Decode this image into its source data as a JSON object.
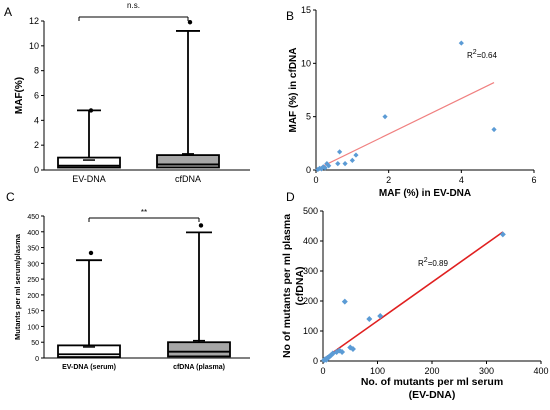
{
  "chart_data": [
    {
      "panel": "A",
      "type": "box",
      "ylabel": "MAF(%)",
      "ylim": [
        0,
        12
      ],
      "yticks": [
        0,
        2,
        4,
        6,
        8,
        10,
        12
      ],
      "categories": [
        "EV-DNA",
        "cfDNA"
      ],
      "colors": [
        "#ffffff",
        "#a6a6a6"
      ],
      "boxes": [
        {
          "min": 0,
          "q1": 0.2,
          "median": 0.35,
          "q3": 1.0,
          "whisker_high": 4.8,
          "outliers": [
            4.8
          ],
          "mean": 0.8
        },
        {
          "min": 0,
          "q1": 0.2,
          "median": 0.45,
          "q3": 1.2,
          "whisker_high": 11.2,
          "outliers": [
            11.9
          ],
          "mean": 1.3
        }
      ],
      "significance": "n.s."
    },
    {
      "panel": "B",
      "type": "scatter",
      "xlabel": "MAF (%) in EV-DNA",
      "ylabel": "MAF (%) in cfDNA",
      "xlim": [
        0,
        6
      ],
      "ylim": [
        0,
        15
      ],
      "xticks": [
        0,
        2,
        4,
        6
      ],
      "yticks": [
        0,
        5,
        10,
        15
      ],
      "point_color": "#5b9bd5",
      "line_color": "#f08080",
      "points": [
        {
          "x": 0.05,
          "y": 0.05
        },
        {
          "x": 0.1,
          "y": 0.15
        },
        {
          "x": 0.15,
          "y": 0.1
        },
        {
          "x": 0.2,
          "y": 0.3
        },
        {
          "x": 0.25,
          "y": 0.2
        },
        {
          "x": 0.3,
          "y": 0.6
        },
        {
          "x": 0.35,
          "y": 0.4
        },
        {
          "x": 0.6,
          "y": 0.6
        },
        {
          "x": 0.65,
          "y": 1.7
        },
        {
          "x": 0.8,
          "y": 0.6
        },
        {
          "x": 1.0,
          "y": 0.9
        },
        {
          "x": 1.1,
          "y": 1.4
        },
        {
          "x": 1.9,
          "y": 5.0
        },
        {
          "x": 4.0,
          "y": 11.9
        },
        {
          "x": 4.9,
          "y": 3.8
        }
      ],
      "fit": {
        "x": [
          0,
          4.9
        ],
        "y": [
          0.05,
          8.2
        ]
      },
      "annotation": {
        "prefix": "R",
        "sup": "2",
        "suffix": "=0.64"
      }
    },
    {
      "panel": "C",
      "type": "box",
      "ylabel": "Mutants per ml serum/plasma",
      "ylim": [
        0,
        450
      ],
      "yticks": [
        0,
        50,
        100,
        150,
        200,
        250,
        300,
        350,
        400,
        450
      ],
      "categories": [
        "EV-DNA (serum)",
        "cfDNA (plasma)"
      ],
      "colors": [
        "#ffffff",
        "#a6a6a6"
      ],
      "boxes": [
        {
          "min": 0,
          "q1": 3,
          "median": 12,
          "q3": 40,
          "whisker_high": 310,
          "outliers": [
            333
          ],
          "mean": 35
        },
        {
          "min": 0,
          "q1": 5,
          "median": 20,
          "q3": 50,
          "whisker_high": 398,
          "outliers": [
            420
          ],
          "mean": 55
        }
      ],
      "significance": "**"
    },
    {
      "panel": "D",
      "type": "scatter",
      "xlabel": [
        "No. of mutants per ml serum",
        "(EV-DNA)"
      ],
      "ylabel": [
        "No of mutants per ml plasma",
        "(cfDNA)"
      ],
      "xlim": [
        0,
        400
      ],
      "ylim": [
        0,
        500
      ],
      "xticks": [
        0,
        100,
        200,
        300,
        400
      ],
      "yticks": [
        0,
        100,
        200,
        300,
        400,
        500
      ],
      "point_color": "#5b9bd5",
      "line_color": "#e02020",
      "points": [
        {
          "x": 2,
          "y": 3
        },
        {
          "x": 4,
          "y": 6
        },
        {
          "x": 6,
          "y": 4
        },
        {
          "x": 8,
          "y": 10
        },
        {
          "x": 10,
          "y": 12
        },
        {
          "x": 12,
          "y": 15
        },
        {
          "x": 15,
          "y": 20
        },
        {
          "x": 18,
          "y": 25
        },
        {
          "x": 25,
          "y": 30
        },
        {
          "x": 30,
          "y": 35
        },
        {
          "x": 35,
          "y": 30
        },
        {
          "x": 40,
          "y": 198
        },
        {
          "x": 50,
          "y": 45
        },
        {
          "x": 55,
          "y": 40
        },
        {
          "x": 85,
          "y": 140
        },
        {
          "x": 105,
          "y": 150
        },
        {
          "x": 330,
          "y": 422
        }
      ],
      "fit": {
        "x": [
          0,
          330
        ],
        "y": [
          5,
          430
        ]
      },
      "annotation": {
        "prefix": "R",
        "sup": "2",
        "suffix": "=0.89"
      }
    }
  ]
}
